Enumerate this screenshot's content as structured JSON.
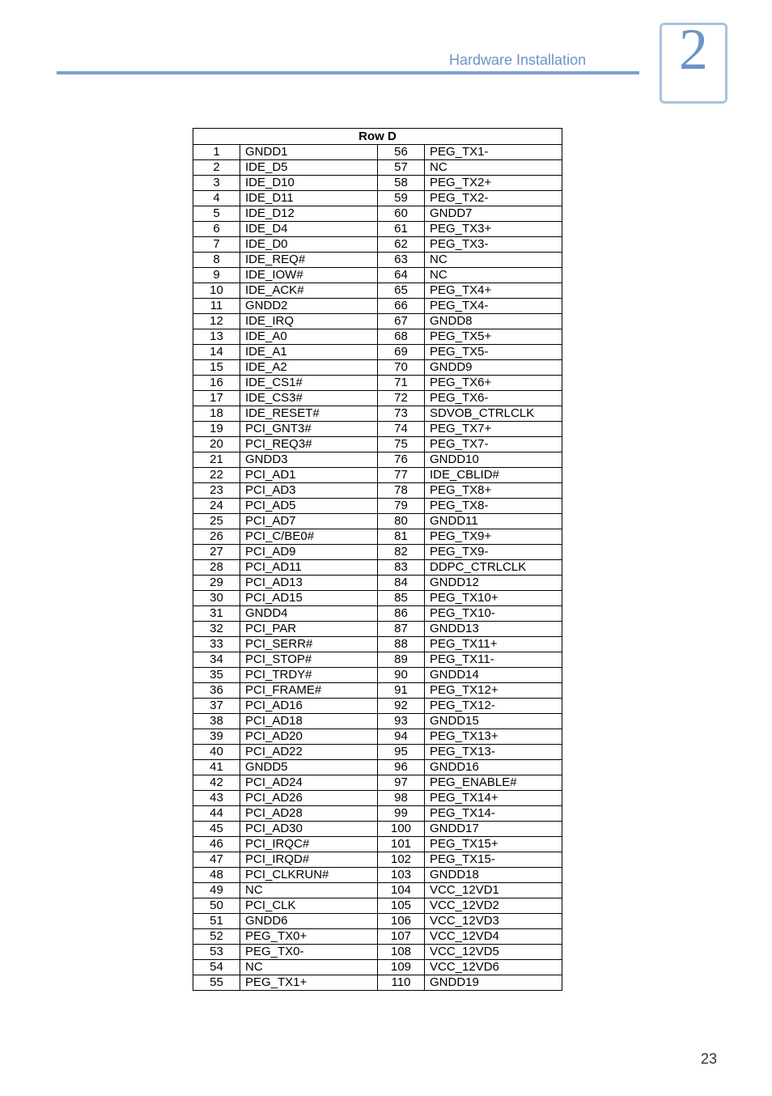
{
  "header": {
    "section_title": "Hardware Installation",
    "section_number": "2",
    "rule_color": "#7b9fcf",
    "text_color": "#6c94c6",
    "box_border": "#a8c3df"
  },
  "table": {
    "title": "Row D",
    "title_fontsize": 15,
    "cell_fontsize": 15,
    "border_color": "#000000",
    "col_widths": {
      "num": 58,
      "sig": 170
    },
    "left": [
      {
        "n": "1",
        "s": "GNDD1"
      },
      {
        "n": "2",
        "s": "IDE_D5"
      },
      {
        "n": "3",
        "s": "IDE_D10"
      },
      {
        "n": "4",
        "s": "IDE_D11"
      },
      {
        "n": "5",
        "s": "IDE_D12"
      },
      {
        "n": "6",
        "s": "IDE_D4"
      },
      {
        "n": "7",
        "s": "IDE_D0"
      },
      {
        "n": "8",
        "s": "IDE_REQ#"
      },
      {
        "n": "9",
        "s": "IDE_IOW#"
      },
      {
        "n": "10",
        "s": "IDE_ACK#"
      },
      {
        "n": "11",
        "s": "GNDD2"
      },
      {
        "n": "12",
        "s": "IDE_IRQ"
      },
      {
        "n": "13",
        "s": "IDE_A0"
      },
      {
        "n": "14",
        "s": "IDE_A1"
      },
      {
        "n": "15",
        "s": "IDE_A2"
      },
      {
        "n": "16",
        "s": "IDE_CS1#"
      },
      {
        "n": "17",
        "s": "IDE_CS3#"
      },
      {
        "n": "18",
        "s": "IDE_RESET#"
      },
      {
        "n": "19",
        "s": "PCI_GNT3#"
      },
      {
        "n": "20",
        "s": "PCI_REQ3#"
      },
      {
        "n": "21",
        "s": "GNDD3"
      },
      {
        "n": "22",
        "s": "PCI_AD1"
      },
      {
        "n": "23",
        "s": "PCI_AD3"
      },
      {
        "n": "24",
        "s": "PCI_AD5"
      },
      {
        "n": "25",
        "s": "PCI_AD7"
      },
      {
        "n": "26",
        "s": "PCI_C/BE0#"
      },
      {
        "n": "27",
        "s": "PCI_AD9"
      },
      {
        "n": "28",
        "s": "PCI_AD11"
      },
      {
        "n": "29",
        "s": "PCI_AD13"
      },
      {
        "n": "30",
        "s": "PCI_AD15"
      },
      {
        "n": "31",
        "s": "GNDD4"
      },
      {
        "n": "32",
        "s": "PCI_PAR"
      },
      {
        "n": "33",
        "s": "PCI_SERR#"
      },
      {
        "n": "34",
        "s": "PCI_STOP#"
      },
      {
        "n": "35",
        "s": "PCI_TRDY#"
      },
      {
        "n": "36",
        "s": "PCI_FRAME#"
      },
      {
        "n": "37",
        "s": "PCI_AD16"
      },
      {
        "n": "38",
        "s": "PCI_AD18"
      },
      {
        "n": "39",
        "s": "PCI_AD20"
      },
      {
        "n": "40",
        "s": "PCI_AD22"
      },
      {
        "n": "41",
        "s": "GNDD5"
      },
      {
        "n": "42",
        "s": "PCI_AD24"
      },
      {
        "n": "43",
        "s": "PCI_AD26"
      },
      {
        "n": "44",
        "s": "PCI_AD28"
      },
      {
        "n": "45",
        "s": "PCI_AD30"
      },
      {
        "n": "46",
        "s": "PCI_IRQC#"
      },
      {
        "n": "47",
        "s": "PCI_IRQD#"
      },
      {
        "n": "48",
        "s": "PCI_CLKRUN#"
      },
      {
        "n": "49",
        "s": "NC"
      },
      {
        "n": "50",
        "s": "PCI_CLK"
      },
      {
        "n": "51",
        "s": "GNDD6"
      },
      {
        "n": "52",
        "s": "PEG_TX0+"
      },
      {
        "n": "53",
        "s": "PEG_TX0-"
      },
      {
        "n": "54",
        "s": "NC"
      },
      {
        "n": "55",
        "s": "PEG_TX1+"
      }
    ],
    "right": [
      {
        "n": "56",
        "s": "PEG_TX1-"
      },
      {
        "n": "57",
        "s": "NC"
      },
      {
        "n": "58",
        "s": "PEG_TX2+"
      },
      {
        "n": "59",
        "s": "PEG_TX2-"
      },
      {
        "n": "60",
        "s": "GNDD7"
      },
      {
        "n": "61",
        "s": "PEG_TX3+"
      },
      {
        "n": "62",
        "s": "PEG_TX3-"
      },
      {
        "n": "63",
        "s": "NC"
      },
      {
        "n": "64",
        "s": "NC"
      },
      {
        "n": "65",
        "s": "PEG_TX4+"
      },
      {
        "n": "66",
        "s": "PEG_TX4-"
      },
      {
        "n": "67",
        "s": "GNDD8"
      },
      {
        "n": "68",
        "s": "PEG_TX5+"
      },
      {
        "n": "69",
        "s": "PEG_TX5-"
      },
      {
        "n": "70",
        "s": "GNDD9"
      },
      {
        "n": "71",
        "s": "PEG_TX6+"
      },
      {
        "n": "72",
        "s": "PEG_TX6-"
      },
      {
        "n": "73",
        "s": "SDVOB_CTRLCLK"
      },
      {
        "n": "74",
        "s": "PEG_TX7+"
      },
      {
        "n": "75",
        "s": "PEG_TX7-"
      },
      {
        "n": "76",
        "s": "GNDD10"
      },
      {
        "n": "77",
        "s": "IDE_CBLID#"
      },
      {
        "n": "78",
        "s": "PEG_TX8+"
      },
      {
        "n": "79",
        "s": "PEG_TX8-"
      },
      {
        "n": "80",
        "s": "GNDD11"
      },
      {
        "n": "81",
        "s": "PEG_TX9+"
      },
      {
        "n": "82",
        "s": "PEG_TX9-"
      },
      {
        "n": "83",
        "s": "DDPC_CTRLCLK"
      },
      {
        "n": "84",
        "s": "GNDD12"
      },
      {
        "n": "85",
        "s": "PEG_TX10+"
      },
      {
        "n": "86",
        "s": "PEG_TX10-"
      },
      {
        "n": "87",
        "s": "GNDD13"
      },
      {
        "n": "88",
        "s": "PEG_TX11+"
      },
      {
        "n": "89",
        "s": "PEG_TX11-"
      },
      {
        "n": "90",
        "s": "GNDD14"
      },
      {
        "n": "91",
        "s": "PEG_TX12+"
      },
      {
        "n": "92",
        "s": "PEG_TX12-"
      },
      {
        "n": "93",
        "s": "GNDD15"
      },
      {
        "n": "94",
        "s": "PEG_TX13+"
      },
      {
        "n": "95",
        "s": "PEG_TX13-"
      },
      {
        "n": "96",
        "s": "GNDD16"
      },
      {
        "n": "97",
        "s": "PEG_ENABLE#"
      },
      {
        "n": "98",
        "s": "PEG_TX14+"
      },
      {
        "n": "99",
        "s": "PEG_TX14-"
      },
      {
        "n": "100",
        "s": "GNDD17"
      },
      {
        "n": "101",
        "s": "PEG_TX15+"
      },
      {
        "n": "102",
        "s": "PEG_TX15-"
      },
      {
        "n": "103",
        "s": "GNDD18"
      },
      {
        "n": "104",
        "s": "VCC_12VD1"
      },
      {
        "n": "105",
        "s": "VCC_12VD2"
      },
      {
        "n": "106",
        "s": "VCC_12VD3"
      },
      {
        "n": "107",
        "s": "VCC_12VD4"
      },
      {
        "n": "108",
        "s": "VCC_12VD5"
      },
      {
        "n": "109",
        "s": "VCC_12VD6"
      },
      {
        "n": "110",
        "s": "GNDD19"
      }
    ]
  },
  "footer": {
    "page_number": "23"
  }
}
